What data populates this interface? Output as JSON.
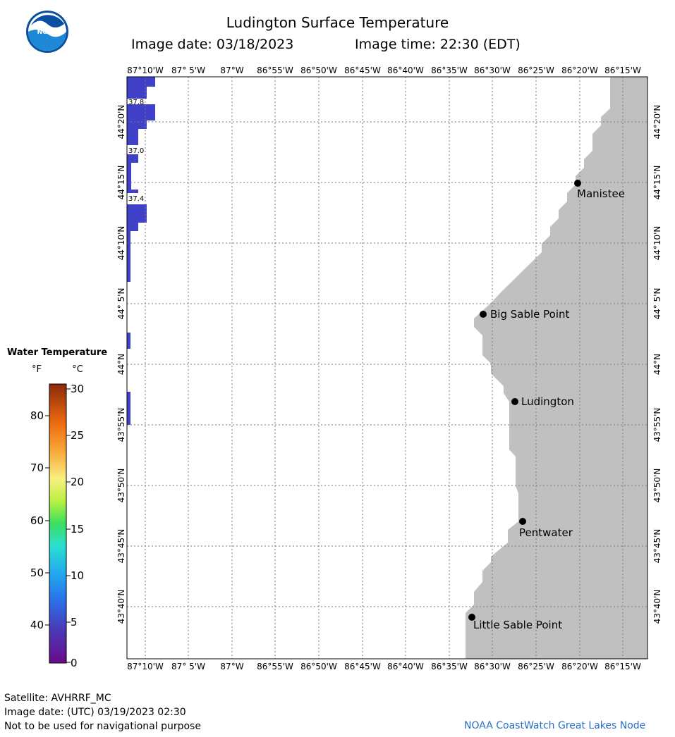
{
  "header": {
    "title": "Ludington Surface Temperature",
    "image_date": "Image date: 03/18/2023",
    "image_time": "Image time: 22:30 (EDT)",
    "logo_text": "NOAA"
  },
  "map": {
    "lon_labels": [
      "87°10'W",
      "87° 5'W",
      "87°W",
      "86°55'W",
      "86°50'W",
      "86°45'W",
      "86°40'W",
      "86°35'W",
      "86°30'W",
      "86°25'W",
      "86°20'W",
      "86°15'W"
    ],
    "lat_labels": [
      "44°20'N",
      "44°15'N",
      "44°10'N",
      "44° 5'N",
      "44°N",
      "43°55'N",
      "43°50'N",
      "43°45'N",
      "43°40'N"
    ],
    "places": [
      {
        "name": "Manistee"
      },
      {
        "name": "Big Sable Point"
      },
      {
        "name": "Ludington"
      },
      {
        "name": "Pentwater"
      },
      {
        "name": "Little Sable Point"
      }
    ],
    "temp_labels": [
      "37.8",
      "37.0",
      "37.4"
    ],
    "colors": {
      "land": "#c0c0c0",
      "water": "#ffffff",
      "sst": "#4040c8",
      "grid": "#888888"
    }
  },
  "legend": {
    "title": "Water Temperature",
    "unit_f": "°F",
    "unit_c": "°C",
    "f_ticks": [
      "80",
      "70",
      "60",
      "50",
      "40"
    ],
    "c_ticks": [
      "30",
      "25",
      "20",
      "15",
      "10",
      "5",
      "0"
    ]
  },
  "footer": {
    "satellite": "Satellite: AVHRRF_MC",
    "utc_date": "Image date: (UTC) 03/19/2023  02:30",
    "disclaimer": "Not to be used for navigational purpose",
    "credit": "NOAA CoastWatch Great Lakes Node"
  }
}
